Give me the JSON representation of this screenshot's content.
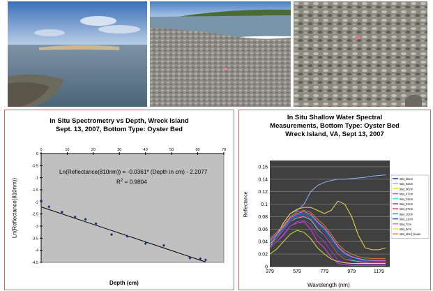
{
  "chart_data": [
    {
      "type": "scatter",
      "title_lines": [
        "In Situ Spectrometry vs Depth, Wreck Island",
        "Sept. 13, 2007, Bottom Type: Oyster Bed"
      ],
      "xlabel": "Depth (cm)",
      "ylabel": "Ln(Reflectance(810nm))",
      "xlim": [
        0,
        70
      ],
      "ylim": [
        -4.5,
        0
      ],
      "x_ticks": [
        0,
        10,
        20,
        30,
        40,
        50,
        60,
        70
      ],
      "y_ticks": [
        0,
        -0.5,
        -1,
        -1.5,
        -2,
        -2.5,
        -3,
        -3.5,
        -4,
        -4.5
      ],
      "y_tick_labels": [
        "0",
        "-0.5",
        "-1",
        "-1.5",
        "-2",
        "-2.5",
        "-3",
        "-3.5",
        "-4",
        "-4.5"
      ],
      "x_axis_position": "top",
      "grid": false,
      "background": "#c0c0c0",
      "point_color": "#1f2a8a",
      "trendline_color": "#000000",
      "equation": "Ln(Reflectance(810nm)) = -0.0361* (Depth in cm) - 2.2077",
      "r2_prefix": "R",
      "r2_sup": "2",
      "r2_suffix": " = 0.9804",
      "trendline": {
        "slope": -0.0361,
        "intercept": -2.2077
      },
      "points": {
        "x": [
          0,
          3,
          8,
          13,
          17,
          21,
          27,
          33,
          40,
          47,
          57,
          61,
          63
        ],
        "y": [
          -1.95,
          -2.2,
          -2.42,
          -2.62,
          -2.72,
          -2.9,
          -3.35,
          -3.42,
          -3.72,
          -3.8,
          -4.32,
          -4.35,
          -4.4
        ]
      }
    },
    {
      "type": "line",
      "title_lines": [
        "In Situ Shallow Water Spectral",
        "Measurements, Bottom Type: Oyster Bed",
        "Wreck Island, VA, Sept 13, 2007"
      ],
      "xlabel": "Wavelength (nm)",
      "ylabel": "Reflectance",
      "xlim": [
        379,
        1259
      ],
      "ylim": [
        0,
        0.17
      ],
      "x_ticks": [
        379,
        579,
        779,
        979,
        1179
      ],
      "y_ticks": [
        0,
        0.02,
        0.04,
        0.06,
        0.08,
        0.1,
        0.12,
        0.14,
        0.16
      ],
      "y_tick_labels": [
        "0",
        "0.02",
        "0.04",
        "0.06",
        "0.08",
        "0.1",
        "0.12",
        "0.14",
        "0.16"
      ],
      "grid": true,
      "background": "#404040",
      "gridline_color": "#8a8a8a",
      "legend_placement": "right",
      "series": [
        {
          "name": "stat_55cm",
          "color": "#1c3a8c",
          "x": [
            379,
            429,
            479,
            529,
            579,
            629,
            679,
            729,
            779,
            829,
            879,
            929,
            979,
            1029,
            1079,
            1129,
            1179,
            1229
          ],
          "y": [
            0.03,
            0.04,
            0.055,
            0.07,
            0.078,
            0.08,
            0.078,
            0.06,
            0.048,
            0.025,
            0.01,
            0.008,
            0.006,
            0.005,
            0.004,
            0.004,
            0.004,
            0.004
          ]
        },
        {
          "name": "stat_63cm",
          "color": "#8fb2ff",
          "x": [
            379,
            429,
            479,
            529,
            579,
            629,
            679,
            729,
            779,
            829,
            879,
            929,
            979,
            1029,
            1079,
            1129,
            1179,
            1229
          ],
          "y": [
            0.03,
            0.05,
            0.07,
            0.085,
            0.09,
            0.1,
            0.12,
            0.13,
            0.135,
            0.138,
            0.14,
            0.14,
            0.141,
            0.142,
            0.143,
            0.145,
            0.146,
            0.147
          ]
        },
        {
          "name": "stat_60cm",
          "color": "#f0e040",
          "x": [
            379,
            429,
            479,
            529,
            579,
            629,
            679,
            729,
            779,
            829,
            879,
            929,
            979,
            1029,
            1079,
            1129,
            1179,
            1229
          ],
          "y": [
            0.035,
            0.05,
            0.07,
            0.085,
            0.092,
            0.095,
            0.095,
            0.09,
            0.085,
            0.09,
            0.105,
            0.1,
            0.08,
            0.05,
            0.03,
            0.027,
            0.027,
            0.03
          ]
        },
        {
          "name": "stat_47cm",
          "color": "#e040e0",
          "x": [
            379,
            429,
            479,
            529,
            579,
            629,
            679,
            729,
            779,
            829,
            879,
            929,
            979,
            1029,
            1079,
            1129,
            1179,
            1229
          ],
          "y": [
            0.03,
            0.04,
            0.05,
            0.065,
            0.07,
            0.072,
            0.06,
            0.04,
            0.03,
            0.015,
            0.005,
            0.003,
            0.002,
            0.002,
            0.002,
            0.002,
            0.002,
            0.002
          ]
        },
        {
          "name": "stat_33cm",
          "color": "#40e0e0",
          "x": [
            379,
            429,
            479,
            529,
            579,
            629,
            679,
            729,
            779,
            829,
            879,
            929,
            979,
            1029,
            1079,
            1129,
            1179,
            1229
          ],
          "y": [
            0.035,
            0.045,
            0.06,
            0.072,
            0.078,
            0.08,
            0.075,
            0.06,
            0.05,
            0.035,
            0.02,
            0.012,
            0.01,
            0.008,
            0.007,
            0.006,
            0.006,
            0.006
          ]
        },
        {
          "name": "stat_42cm",
          "color": "#9040c0",
          "x": [
            379,
            429,
            479,
            529,
            579,
            629,
            679,
            729,
            779,
            829,
            879,
            929,
            979,
            1029,
            1079,
            1129,
            1179,
            1229
          ],
          "y": [
            0.03,
            0.04,
            0.052,
            0.065,
            0.072,
            0.074,
            0.068,
            0.05,
            0.04,
            0.025,
            0.01,
            0.007,
            0.005,
            0.004,
            0.004,
            0.004,
            0.004,
            0.004
          ]
        },
        {
          "name": "stat_27cm",
          "color": "#c04040",
          "x": [
            379,
            429,
            479,
            529,
            579,
            629,
            679,
            729,
            779,
            829,
            879,
            929,
            979,
            1029,
            1079,
            1129,
            1179,
            1229
          ],
          "y": [
            0.035,
            0.045,
            0.058,
            0.072,
            0.08,
            0.082,
            0.077,
            0.062,
            0.05,
            0.035,
            0.02,
            0.012,
            0.009,
            0.007,
            0.006,
            0.006,
            0.006,
            0.006
          ]
        },
        {
          "name": "stat_10cm",
          "color": "#10a0a0",
          "x": [
            379,
            429,
            479,
            529,
            579,
            629,
            679,
            729,
            779,
            829,
            879,
            929,
            979,
            1029,
            1079,
            1129,
            1179,
            1229
          ],
          "y": [
            0.04,
            0.05,
            0.062,
            0.075,
            0.083,
            0.085,
            0.082,
            0.07,
            0.06,
            0.045,
            0.03,
            0.02,
            0.015,
            0.012,
            0.01,
            0.009,
            0.009,
            0.009
          ]
        },
        {
          "name": "stat_11cm",
          "color": "#3050d0",
          "x": [
            379,
            429,
            479,
            529,
            579,
            629,
            679,
            729,
            779,
            829,
            879,
            929,
            979,
            1029,
            1079,
            1129,
            1179,
            1229
          ],
          "y": [
            0.038,
            0.048,
            0.06,
            0.074,
            0.082,
            0.084,
            0.08,
            0.066,
            0.056,
            0.04,
            0.025,
            0.016,
            0.012,
            0.01,
            0.009,
            0.008,
            0.008,
            0.008
          ]
        },
        {
          "name": "stat_7cm",
          "color": "#ff60ff",
          "x": [
            379,
            429,
            479,
            529,
            579,
            629,
            679,
            729,
            779,
            829,
            879,
            929,
            979,
            1029,
            1079,
            1129,
            1179,
            1229
          ],
          "y": [
            0.042,
            0.052,
            0.064,
            0.078,
            0.085,
            0.088,
            0.084,
            0.072,
            0.062,
            0.048,
            0.032,
            0.022,
            0.016,
            0.013,
            0.011,
            0.01,
            0.01,
            0.01
          ]
        },
        {
          "name": "stat_5cm",
          "color": "#e0e040",
          "x": [
            379,
            429,
            479,
            529,
            579,
            629,
            679,
            729,
            779,
            829,
            879,
            929,
            979,
            1029,
            1079,
            1129,
            1179,
            1229
          ],
          "y": [
            0.02,
            0.028,
            0.04,
            0.052,
            0.058,
            0.055,
            0.045,
            0.03,
            0.02,
            0.012,
            0.008,
            0.006,
            0.005,
            0.005,
            0.005,
            0.005,
            0.005,
            0.005
          ]
        },
        {
          "name": "stat_shell_beam",
          "color": "#d08040",
          "x": [
            379,
            429,
            479,
            529,
            579,
            629,
            679,
            729,
            779,
            829,
            879,
            929,
            979,
            1029,
            1079,
            1129,
            1179,
            1229
          ],
          "y": [
            0.045,
            0.055,
            0.066,
            0.08,
            0.088,
            0.09,
            0.087,
            0.076,
            0.066,
            0.052,
            0.036,
            0.026,
            0.02,
            0.016,
            0.014,
            0.013,
            0.013,
            0.013
          ]
        }
      ]
    }
  ]
}
